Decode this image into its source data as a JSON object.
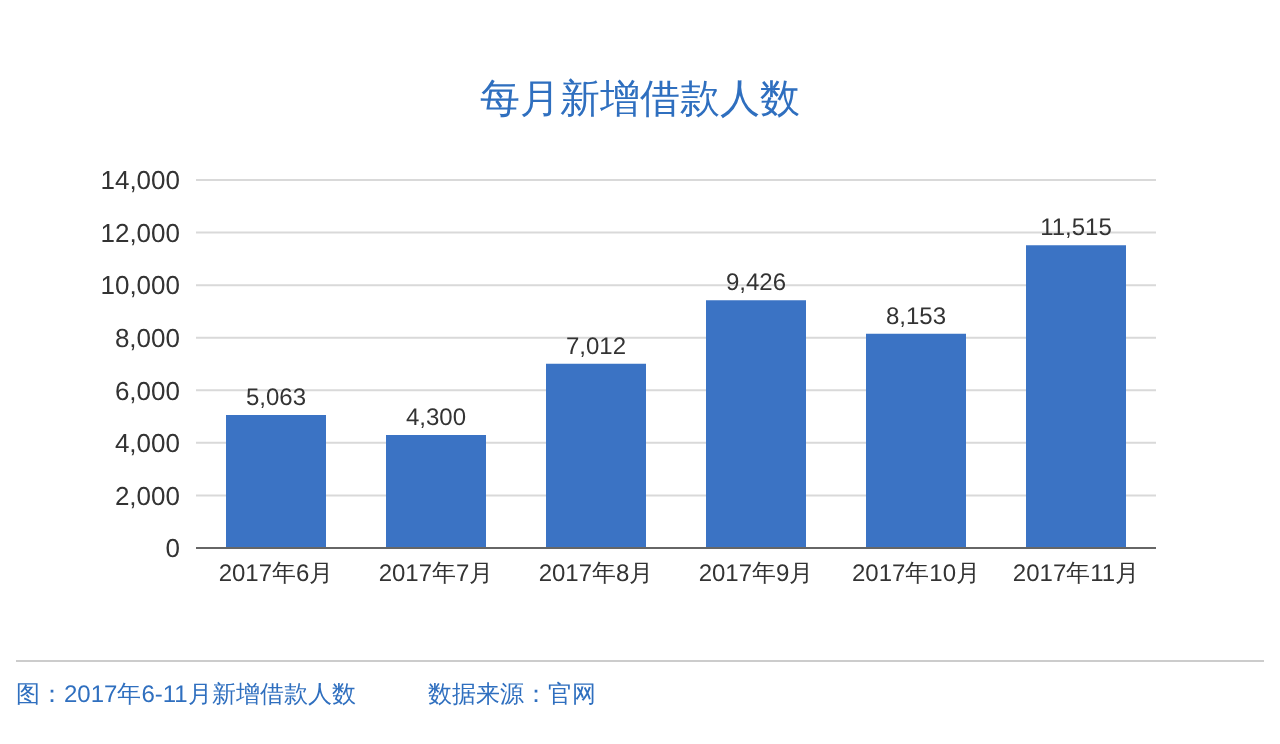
{
  "chart_data": {
    "type": "bar",
    "title": "每月新增借款人数",
    "categories": [
      "2017年6月",
      "2017年7月",
      "2017年8月",
      "2017年9月",
      "2017年10月",
      "2017年11月"
    ],
    "values": [
      5063,
      4300,
      7012,
      9426,
      8153,
      11515
    ],
    "color": "#3b73c4",
    "value_labels": [
      "5,063",
      "4,300",
      "7,012",
      "9,426",
      "8,153",
      "11,515"
    ],
    "ylim": [
      0,
      14000
    ],
    "yticks": [
      0,
      {
        "value": 2000,
        "label": "2,000"
      },
      {
        "value": 4000,
        "label": "4,000"
      },
      {
        "value": 6000,
        "label": "6,000"
      },
      {
        "value": 8000,
        "label": "8,000"
      },
      {
        "value": 10000,
        "label": "10,000"
      },
      {
        "value": 12000,
        "label": "12,000"
      },
      {
        "value": 14000,
        "label": "14,000"
      }
    ],
    "grid": "y",
    "annotations": [
      "图：2017年6-11月新增借款人数",
      "数据来源：官网"
    ]
  }
}
